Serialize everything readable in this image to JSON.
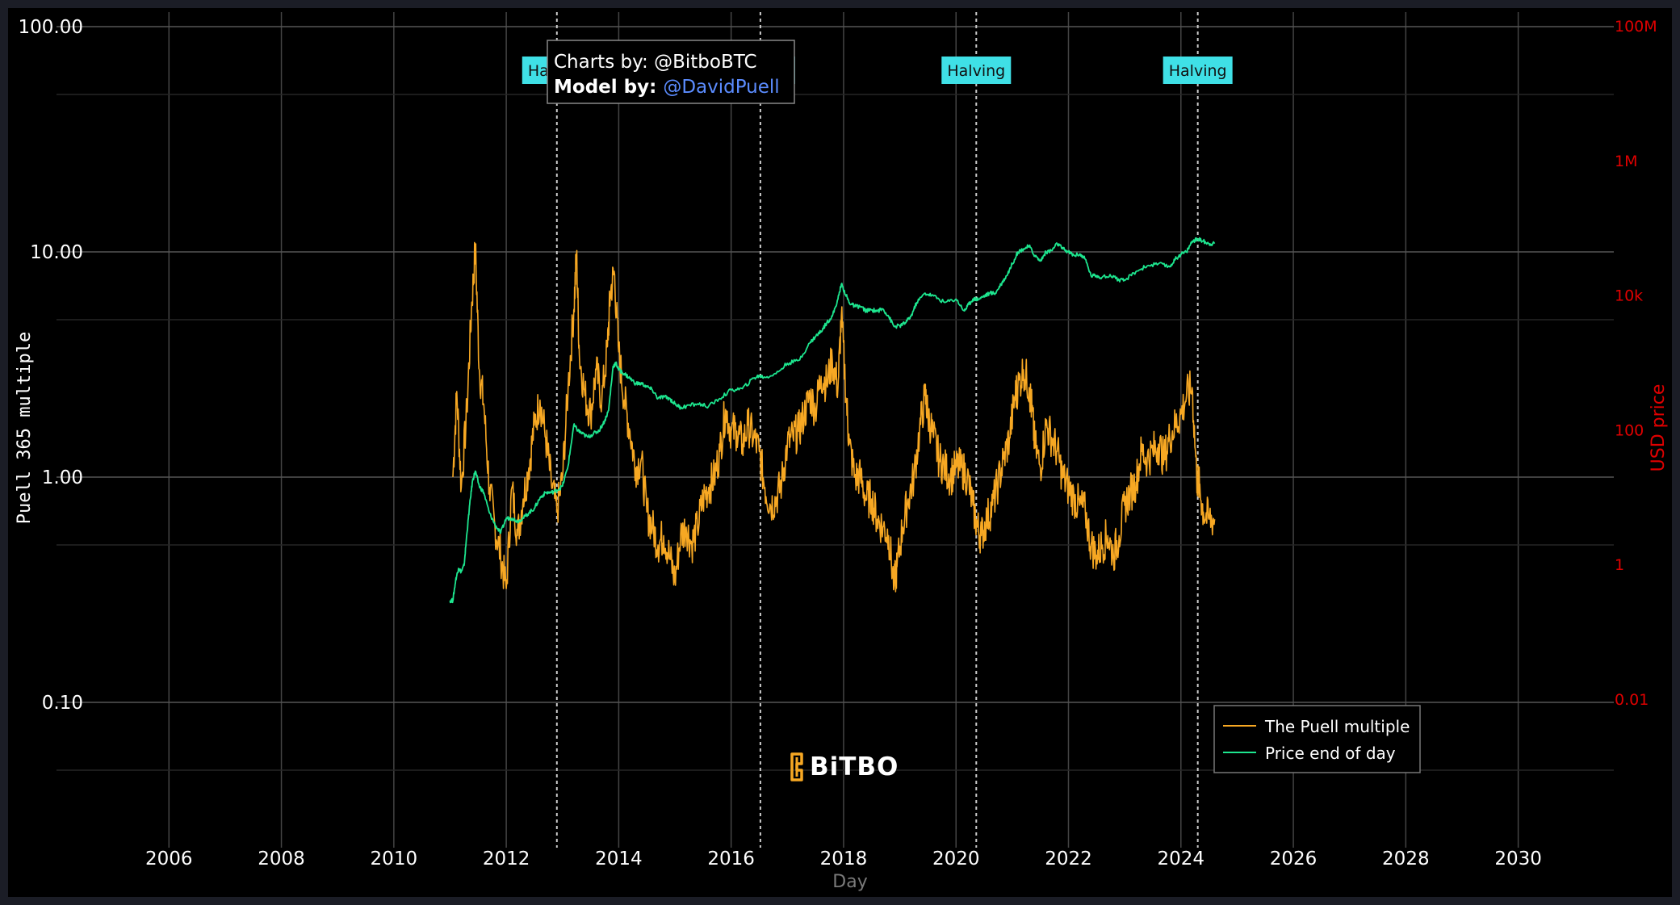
{
  "chart_data": {
    "type": "line",
    "xlabel": "Day",
    "ylabel_left": "Puell 365 multiple",
    "ylabel_right": "USD price",
    "x_ticks": [
      "2006",
      "2008",
      "2010",
      "2012",
      "2014",
      "2016",
      "2018",
      "2020",
      "2022",
      "2024",
      "2026",
      "2028",
      "2030"
    ],
    "y_left_ticks": [
      "100.00",
      "10.00",
      "1.00",
      "0.10"
    ],
    "y_left_tick_values": [
      100,
      10,
      1,
      0.1
    ],
    "y_left_range": [
      0.01,
      100
    ],
    "y_left_scale": "log",
    "y_right_ticks": [
      "100M",
      "1M",
      "10k",
      "100",
      "1",
      "0.01"
    ],
    "y_right_tick_values": [
      100000000,
      1000000,
      10000,
      100,
      1,
      0.01
    ],
    "y_right_range": [
      0.0001,
      100000000
    ],
    "y_right_scale": "log",
    "x_range": [
      2004.0,
      2031.7
    ],
    "grid": true,
    "legend_position": "bottom-right",
    "halvings": [
      {
        "label": "Halving",
        "x": 2012.9
      },
      {
        "label": "Halving",
        "x": 2016.52
      },
      {
        "label": "Halving",
        "x": 2020.36
      },
      {
        "label": "Halving",
        "x": 2024.3
      }
    ],
    "series": [
      {
        "name": "The Puell multiple",
        "axis": "left",
        "color": "#f7a823",
        "x": [
          2011.05,
          2011.12,
          2011.2,
          2011.3,
          2011.38,
          2011.45,
          2011.52,
          2011.6,
          2011.7,
          2011.8,
          2011.9,
          2012.0,
          2012.1,
          2012.2,
          2012.3,
          2012.4,
          2012.5,
          2012.6,
          2012.7,
          2012.8,
          2012.9,
          2013.0,
          2013.1,
          2013.2,
          2013.25,
          2013.3,
          2013.4,
          2013.5,
          2013.6,
          2013.7,
          2013.8,
          2013.85,
          2013.92,
          2014.0,
          2014.1,
          2014.2,
          2014.3,
          2014.4,
          2014.5,
          2014.6,
          2014.7,
          2014.8,
          2014.9,
          2015.0,
          2015.1,
          2015.2,
          2015.3,
          2015.4,
          2015.5,
          2015.6,
          2015.7,
          2015.8,
          2015.9,
          2016.0,
          2016.1,
          2016.2,
          2016.3,
          2016.4,
          2016.5,
          2016.6,
          2016.7,
          2016.8,
          2016.9,
          2017.0,
          2017.1,
          2017.2,
          2017.3,
          2017.4,
          2017.5,
          2017.6,
          2017.7,
          2017.8,
          2017.9,
          2017.96,
          2018.05,
          2018.1,
          2018.2,
          2018.3,
          2018.4,
          2018.5,
          2018.6,
          2018.7,
          2018.8,
          2018.9,
          2018.95,
          2019.05,
          2019.15,
          2019.25,
          2019.35,
          2019.45,
          2019.5,
          2019.6,
          2019.7,
          2019.8,
          2019.9,
          2020.0,
          2020.1,
          2020.2,
          2020.3,
          2020.38,
          2020.45,
          2020.55,
          2020.65,
          2020.75,
          2020.85,
          2020.95,
          2021.05,
          2021.1,
          2021.2,
          2021.3,
          2021.35,
          2021.4,
          2021.5,
          2021.6,
          2021.7,
          2021.8,
          2021.9,
          2022.0,
          2022.1,
          2022.2,
          2022.3,
          2022.4,
          2022.5,
          2022.6,
          2022.7,
          2022.8,
          2022.9,
          2023.0,
          2023.1,
          2023.2,
          2023.3,
          2023.4,
          2023.5,
          2023.6,
          2023.7,
          2023.8,
          2023.9,
          2024.0,
          2024.1,
          2024.2,
          2024.28,
          2024.33,
          2024.4,
          2024.5,
          2024.6
        ],
        "y": [
          1.0,
          2.4,
          0.9,
          2.0,
          5.5,
          10.5,
          3.0,
          2.1,
          0.9,
          0.6,
          0.45,
          0.32,
          0.9,
          0.55,
          0.8,
          1.1,
          1.7,
          2.2,
          1.5,
          0.95,
          0.7,
          1.0,
          2.5,
          5.5,
          9.8,
          3.5,
          2.3,
          1.9,
          3.0,
          2.2,
          3.8,
          6.5,
          8.2,
          3.6,
          2.2,
          1.6,
          1.1,
          1.2,
          0.7,
          0.6,
          0.5,
          0.55,
          0.45,
          0.35,
          0.55,
          0.6,
          0.5,
          0.6,
          0.8,
          0.9,
          1.0,
          1.3,
          2.0,
          1.6,
          1.6,
          1.4,
          1.7,
          1.5,
          1.3,
          0.9,
          0.75,
          0.8,
          0.95,
          1.4,
          1.5,
          1.6,
          1.9,
          2.3,
          2.0,
          2.8,
          2.6,
          3.3,
          2.5,
          5.2,
          2.2,
          1.4,
          1.0,
          1.0,
          0.8,
          0.8,
          0.65,
          0.6,
          0.55,
          0.33,
          0.4,
          0.6,
          0.8,
          1.0,
          1.6,
          2.3,
          1.9,
          1.5,
          1.2,
          1.1,
          1.0,
          1.1,
          1.1,
          1.0,
          0.75,
          0.6,
          0.55,
          0.65,
          0.75,
          0.95,
          1.2,
          1.5,
          2.3,
          2.5,
          3.0,
          2.5,
          2.0,
          1.4,
          1.1,
          1.7,
          1.5,
          1.3,
          1.0,
          0.9,
          0.8,
          0.75,
          0.7,
          0.5,
          0.45,
          0.5,
          0.55,
          0.45,
          0.55,
          0.75,
          0.85,
          0.95,
          1.3,
          1.2,
          1.3,
          1.4,
          1.2,
          1.5,
          1.7,
          1.9,
          2.3,
          2.5,
          1.0,
          0.9,
          0.7,
          0.65,
          0.65
        ]
      },
      {
        "name": "Price end of day",
        "axis": "right",
        "color": "#1de68f",
        "x": [
          2011.0,
          2011.05,
          2011.1,
          2011.15,
          2011.2,
          2011.25,
          2011.3,
          2011.35,
          2011.4,
          2011.45,
          2011.52,
          2011.6,
          2011.7,
          2011.8,
          2011.9,
          2012.0,
          2012.1,
          2012.2,
          2012.3,
          2012.4,
          2012.5,
          2012.6,
          2012.7,
          2012.8,
          2012.9,
          2013.0,
          2013.1,
          2013.2,
          2013.28,
          2013.35,
          2013.45,
          2013.55,
          2013.65,
          2013.75,
          2013.82,
          2013.9,
          2013.95,
          2014.0,
          2014.1,
          2014.2,
          2014.3,
          2014.4,
          2014.5,
          2014.6,
          2014.7,
          2014.8,
          2014.9,
          2015.0,
          2015.1,
          2015.2,
          2015.4,
          2015.6,
          2015.8,
          2016.0,
          2016.2,
          2016.4,
          2016.5,
          2016.6,
          2016.8,
          2017.0,
          2017.2,
          2017.4,
          2017.5,
          2017.6,
          2017.7,
          2017.8,
          2017.9,
          2017.96,
          2018.05,
          2018.1,
          2018.2,
          2018.3,
          2018.4,
          2018.5,
          2018.6,
          2018.7,
          2018.8,
          2018.9,
          2019.0,
          2019.1,
          2019.2,
          2019.3,
          2019.45,
          2019.6,
          2019.8,
          2020.0,
          2020.15,
          2020.2,
          2020.3,
          2020.4,
          2020.5,
          2020.6,
          2020.7,
          2020.8,
          2020.9,
          2021.0,
          2021.1,
          2021.2,
          2021.3,
          2021.4,
          2021.5,
          2021.6,
          2021.7,
          2021.8,
          2021.9,
          2022.0,
          2022.1,
          2022.2,
          2022.3,
          2022.4,
          2022.5,
          2022.6,
          2022.8,
          2022.9,
          2023.0,
          2023.2,
          2023.4,
          2023.6,
          2023.8,
          2023.9,
          2024.0,
          2024.1,
          2024.2,
          2024.3,
          2024.4,
          2024.5,
          2024.6
        ],
        "y": [
          0.3,
          0.3,
          0.6,
          0.9,
          0.8,
          1.0,
          3,
          8,
          18,
          25,
          15,
          12,
          6,
          4,
          3,
          5,
          5,
          4.5,
          5,
          6,
          7,
          10,
          12,
          12,
          13,
          15,
          30,
          120,
          100,
          90,
          80,
          90,
          100,
          140,
          200,
          900,
          1000,
          800,
          700,
          600,
          500,
          500,
          450,
          400,
          300,
          320,
          300,
          250,
          220,
          230,
          250,
          230,
          300,
          400,
          420,
          600,
          650,
          620,
          700,
          1000,
          1100,
          2000,
          2500,
          3000,
          4000,
          5000,
          9000,
          15000,
          10000,
          8000,
          7000,
          7000,
          6000,
          6200,
          6000,
          6400,
          5000,
          3500,
          3600,
          4000,
          5000,
          8000,
          11000,
          10000,
          8000,
          9000,
          6000,
          7000,
          9000,
          9000,
          10000,
          11000,
          11000,
          15000,
          20000,
          30000,
          45000,
          50000,
          55000,
          40000,
          33000,
          45000,
          47000,
          60000,
          50000,
          45000,
          40000,
          42000,
          35000,
          20000,
          20000,
          19000,
          20000,
          17000,
          17000,
          23000,
          28000,
          30000,
          27000,
          35000,
          42000,
          45000,
          65000,
          70000,
          65000,
          60000,
          60000
        ]
      }
    ]
  },
  "legend": {
    "items": [
      "The Puell multiple",
      "Price end of day"
    ]
  },
  "credits": {
    "charts_prefix": "Charts by: ",
    "charts_handle": "@BitboBTC",
    "model_prefix": "Model by: ",
    "model_handle": "@DavidPuell"
  },
  "watermark": {
    "text": "BiTBO"
  },
  "colors": {
    "background": "#000000",
    "frame": "#1b1d26",
    "grid": "#444444",
    "puell": "#f7a823",
    "price": "#1de68f",
    "halving_box": "#3fe0e6",
    "right_axis": "#e00000",
    "link": "#5b8cff"
  }
}
